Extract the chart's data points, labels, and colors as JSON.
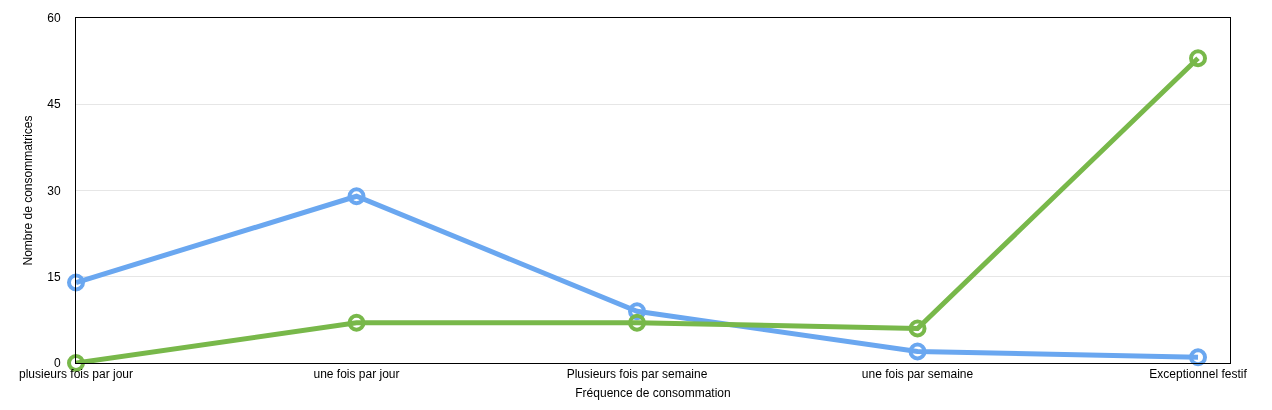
{
  "chart_data": {
    "type": "line",
    "xlabel": "Fréquence de consommation",
    "ylabel": "Nombre de consommatrices",
    "categories": [
      "plusieurs fois par jour",
      "une fois par jour",
      "Plusieurs fois par semaine",
      "une fois par semaine",
      "Exceptionnel festif"
    ],
    "series": [
      {
        "color": "#6aa7f0",
        "values": [
          14,
          29,
          9,
          2,
          1
        ]
      },
      {
        "color": "#78b84a",
        "values": [
          0,
          7,
          7,
          6,
          53
        ]
      }
    ],
    "ylim": [
      0,
      60
    ],
    "yticks": [
      0,
      15,
      30,
      45,
      60
    ],
    "grid": "y",
    "marker": "circle",
    "line_style": "solid"
  }
}
